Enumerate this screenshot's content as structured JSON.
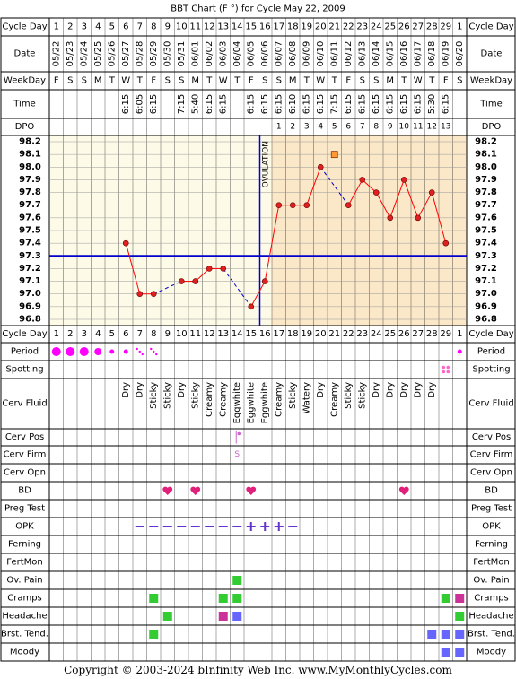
{
  "title": "BBT Chart (F °) for Cycle May 22, 2009",
  "copyright": "Copyright © 2003-2024 bInfinity Web Inc.     www.MyMonthlyCycles.com",
  "row_labels": {
    "cycle_day": "Cycle Day",
    "date": "Date",
    "weekday": "WeekDay",
    "time": "Time",
    "dpo": "DPO",
    "period": "Period",
    "spotting": "Spotting",
    "cerv_fluid": "Cerv Fluid",
    "cerv_pos": "Cerv Pos",
    "cerv_firm": "Cerv Firm",
    "cerv_opn": "Cerv Opn",
    "bd": "BD",
    "preg_test": "Preg Test",
    "opk": "OPK",
    "ferning": "Ferning",
    "fertmon": "FertMon",
    "ov_pain": "Ov. Pain",
    "cramps": "Cramps",
    "headache": "Headache",
    "brst_tend": "Brst. Tend.",
    "moody": "Moody"
  },
  "cycle_days": [
    "1",
    "2",
    "3",
    "4",
    "5",
    "6",
    "7",
    "8",
    "9",
    "10",
    "11",
    "12",
    "13",
    "14",
    "15",
    "16",
    "17",
    "18",
    "19",
    "20",
    "21",
    "22",
    "23",
    "24",
    "25",
    "26",
    "27",
    "28",
    "29",
    "1"
  ],
  "dates": [
    "05/22",
    "05/23",
    "05/24",
    "05/25",
    "05/26",
    "05/27",
    "05/28",
    "05/29",
    "05/30",
    "05/31",
    "06/01",
    "06/02",
    "06/03",
    "06/04",
    "06/05",
    "06/06",
    "06/07",
    "06/08",
    "06/09",
    "06/10",
    "06/11",
    "06/12",
    "06/13",
    "06/14",
    "06/15",
    "06/16",
    "06/17",
    "06/18",
    "06/19",
    "06/20"
  ],
  "weekdays": [
    "F",
    "S",
    "S",
    "M",
    "T",
    "W",
    "T",
    "F",
    "S",
    "S",
    "M",
    "T",
    "W",
    "T",
    "F",
    "S",
    "S",
    "M",
    "T",
    "W",
    "T",
    "F",
    "S",
    "S",
    "M",
    "T",
    "W",
    "T",
    "F",
    "S"
  ],
  "times": [
    "",
    "",
    "",
    "",
    "",
    "6:15",
    "6:05",
    "6:15",
    "",
    "7:15",
    "5:40",
    "6:15",
    "6:15",
    "",
    "6:15",
    "6:15",
    "6:15",
    "6:10",
    "6:15",
    "6:15",
    "7:15",
    "6:15",
    "6:15",
    "6:15",
    "6:15",
    "6:15",
    "6:15",
    "5:30",
    "6:15",
    ""
  ],
  "dpo": [
    "",
    "",
    "",
    "",
    "",
    "",
    "",
    "",
    "",
    "",
    "",
    "",
    "",
    "",
    "",
    "",
    "1",
    "2",
    "3",
    "4",
    "5",
    "6",
    "7",
    "8",
    "9",
    "10",
    "11",
    "12",
    "13",
    ""
  ],
  "cerv_fluid": [
    "",
    "",
    "",
    "",
    "",
    "Dry",
    "Dry",
    "Sticky",
    "Sticky",
    "Dry",
    "Sticky",
    "Creamy",
    "Creamy",
    "Eggwhite",
    "Eggwhite",
    "Eggwhite",
    "Creamy",
    "Sticky",
    "Watery",
    "Dry",
    "Creamy",
    "Sticky",
    "Sticky",
    "Dry",
    "Dry",
    "Dry",
    "Dry",
    "Dry",
    "",
    ""
  ],
  "period": [
    "heavy",
    "heavy",
    "heavy",
    "medium",
    "light",
    "light",
    "spotting",
    "spotting",
    "",
    "",
    "",
    "",
    "",
    "",
    "",
    "",
    "",
    "",
    "",
    "",
    "",
    "",
    "",
    "",
    "",
    "",
    "",
    "",
    "",
    "light"
  ],
  "spotting": [
    29
  ],
  "cerv_pos_days": [
    14
  ],
  "cerv_firm": {
    "day": 14,
    "value": "S"
  },
  "bd_days": [
    9,
    11,
    15,
    26
  ],
  "opk": [
    "",
    "",
    "",
    "",
    "",
    "",
    "neg",
    "neg",
    "neg",
    "neg",
    "neg",
    "neg",
    "neg",
    "neg",
    "pos",
    "pos",
    "pos",
    "neg",
    "",
    "",
    "",
    "",
    "",
    "",
    "",
    "",
    "",
    "",
    "",
    ""
  ],
  "ov_pain_days": [
    14
  ],
  "cramps": [
    {
      "day": 8,
      "level": "light"
    },
    {
      "day": 13,
      "level": "light"
    },
    {
      "day": 14,
      "level": "light"
    },
    {
      "day": 29,
      "level": "light"
    },
    {
      "day": 30,
      "level": "severe"
    }
  ],
  "headache": [
    {
      "day": 9,
      "level": "light"
    },
    {
      "day": 13,
      "level": "severe"
    },
    {
      "day": 14,
      "level": "medium"
    },
    {
      "day": 30,
      "level": "light"
    }
  ],
  "brst_tend": [
    {
      "day": 8,
      "level": "light"
    },
    {
      "day": 28,
      "level": "medium"
    },
    {
      "day": 29,
      "level": "medium"
    },
    {
      "day": 30,
      "level": "medium"
    }
  ],
  "moody": [
    {
      "day": 29,
      "level": "medium"
    },
    {
      "day": 30,
      "level": "medium"
    }
  ],
  "ovulation_label": "OVULATION",
  "chart_data": {
    "type": "line",
    "title": "BBT Chart (F °) for Cycle May 22, 2009",
    "x": [
      1,
      2,
      3,
      4,
      5,
      6,
      7,
      8,
      9,
      10,
      11,
      12,
      13,
      14,
      15,
      16,
      17,
      18,
      19,
      20,
      21,
      22,
      23,
      24,
      25,
      26,
      27,
      28,
      29,
      30
    ],
    "temps": [
      null,
      null,
      null,
      null,
      null,
      97.4,
      97.0,
      97.0,
      null,
      97.1,
      97.1,
      97.2,
      97.2,
      null,
      96.9,
      97.1,
      97.7,
      97.7,
      97.7,
      98.0,
      null,
      97.7,
      97.9,
      97.8,
      97.6,
      97.9,
      97.6,
      97.8,
      97.4,
      null
    ],
    "excluded": [
      {
        "day": 21,
        "temp": 98.1
      }
    ],
    "yticks": [
      "98.2",
      "98.1",
      "98.0",
      "97.9",
      "97.8",
      "97.7",
      "97.6",
      "97.5",
      "97.4",
      "97.3",
      "97.2",
      "97.1",
      "97.0",
      "96.9",
      "96.8"
    ],
    "ylim": [
      96.8,
      98.2
    ],
    "coverline": 97.3,
    "ovulation_day": 16,
    "colors": {
      "line": "#ff0000",
      "point_fill": "#e02020",
      "coverline": "#0000cc",
      "ovulation_line": "#0000cc",
      "luteal_shade": "#fbe8c8",
      "follicular_shade": "#fdfbe8",
      "period": "#ff00ff",
      "spotting": "#ff66cc",
      "bd": "#e0207a",
      "opk_neg": "#6633cc",
      "green": "#33cc33",
      "blue": "#6666ff",
      "magenta": "#cc3399"
    }
  }
}
